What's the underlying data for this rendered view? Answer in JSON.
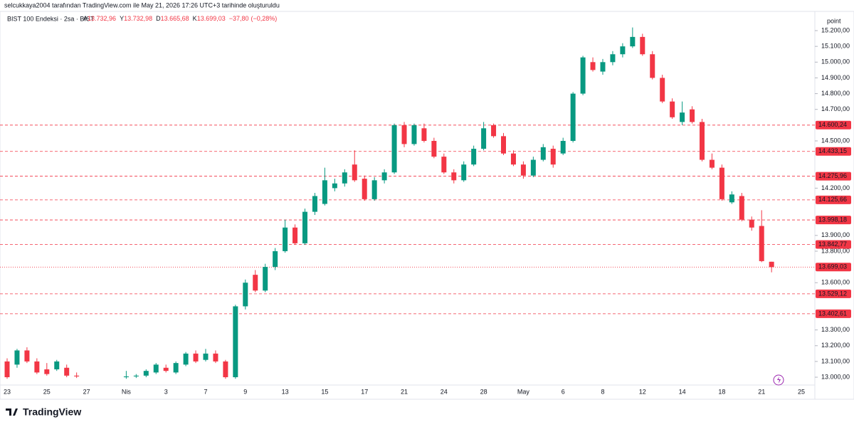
{
  "chart_data": {
    "type": "candlestick",
    "attribution": "selcukkaya2004 tarafından TradingView.com ile May 21, 2026 17:26 UTC+3 tarihinde oluşturuldu",
    "title": "BIST 100 Endeksi · 2sa · BIST",
    "ohlc": [
      {
        "prefix": "A",
        "value": 13732.96,
        "label": "13.732,96"
      },
      {
        "prefix": "Y",
        "value": 13732.98,
        "label": "13.732,98"
      },
      {
        "prefix": "D",
        "value": 13665.68,
        "label": "13.665,68"
      },
      {
        "prefix": "K",
        "value": 13699.03,
        "label": "13.699,03"
      }
    ],
    "change": {
      "value": -37.8,
      "label": "−37,80"
    },
    "change_pct": {
      "value": -0.28,
      "label": "(−0,28%)"
    },
    "unit": "point",
    "brand": "TradingView",
    "up_color": "#089981",
    "down_color": "#f23645",
    "level_color": "#f23645",
    "grid": false,
    "categories": [
      "23",
      null,
      null,
      null,
      "25",
      null,
      null,
      null,
      "27",
      null,
      null,
      null,
      "Nis",
      null,
      null,
      null,
      "3",
      null,
      null,
      null,
      "7",
      null,
      null,
      null,
      "9",
      null,
      null,
      null,
      "13",
      null,
      null,
      null,
      "15",
      null,
      null,
      null,
      "17",
      null,
      null,
      null,
      "21",
      null,
      null,
      null,
      "24",
      null,
      null,
      null,
      "28",
      null,
      null,
      null,
      "May",
      null,
      null,
      null,
      "6",
      null,
      null,
      null,
      "8",
      null,
      null,
      null,
      "12",
      null,
      null,
      null,
      "14",
      null,
      null,
      null,
      "18",
      null,
      null,
      null,
      "21",
      null,
      null,
      null,
      "25"
    ],
    "open": [
      13100,
      13080,
      13170,
      13100,
      13050,
      13050,
      13060,
      13010,
      null,
      null,
      null,
      null,
      13000,
      13005,
      13010,
      13030,
      13060,
      13030,
      13080,
      13150,
      13110,
      13150,
      13100,
      13000,
      13450,
      13650,
      13550,
      13700,
      13800,
      13950,
      13850,
      14050,
      14100,
      14200,
      14230,
      14350,
      14260,
      14130,
      14250,
      14300,
      14600,
      14480,
      14580,
      14500,
      14400,
      14300,
      14250,
      14350,
      14450,
      14600,
      14530,
      14420,
      14350,
      14280,
      14380,
      14450,
      14420,
      14500,
      14800,
      15000,
      14940,
      15000,
      15050,
      15100,
      15160,
      15050,
      14900,
      14750,
      14620,
      14700,
      14620,
      14380,
      14330,
      14110,
      14150,
      14000,
      13960,
      13732.96,
      null,
      null,
      null
    ],
    "high": [
      13120,
      13180,
      13190,
      13120,
      13090,
      13110,
      13080,
      13030,
      null,
      null,
      null,
      null,
      13040,
      13020,
      13050,
      13090,
      13080,
      13100,
      13160,
      13170,
      13180,
      13170,
      13110,
      13460,
      13620,
      13680,
      13720,
      13820,
      14000,
      13970,
      14070,
      14170,
      14330,
      14260,
      14320,
      14440,
      14280,
      14270,
      14320,
      14610,
      14620,
      14610,
      14610,
      14520,
      14420,
      14320,
      14370,
      14470,
      14620,
      14610,
      14550,
      14440,
      14370,
      14400,
      14480,
      14470,
      14520,
      14810,
      15040,
      15030,
      15020,
      15070,
      15120,
      15220,
      15180,
      15070,
      14920,
      14770,
      14750,
      14720,
      14640,
      14420,
      14350,
      14180,
      14170,
      14020,
      14060,
      13732.98,
      null,
      null,
      null
    ],
    "low": [
      12990,
      13060,
      13090,
      13020,
      13010,
      13040,
      13000,
      12995,
      null,
      null,
      null,
      null,
      12990,
      12995,
      13000,
      13020,
      13030,
      13020,
      13070,
      13090,
      13100,
      13090,
      12990,
      12990,
      13430,
      13540,
      13540,
      13680,
      13790,
      13840,
      13840,
      14030,
      14090,
      14180,
      14210,
      14240,
      14120,
      14120,
      14230,
      14290,
      14460,
      14470,
      14490,
      14390,
      14290,
      14230,
      14240,
      14340,
      14440,
      14520,
      14410,
      14340,
      14260,
      14270,
      14370,
      14330,
      14410,
      14490,
      14790,
      14940,
      14920,
      14980,
      15030,
      15090,
      15040,
      14890,
      14740,
      14640,
      14600,
      14610,
      14370,
      14320,
      14120,
      14100,
      13990,
      13930,
      13730,
      13665.68,
      null,
      null,
      null
    ],
    "close": [
      13000,
      13170,
      13100,
      13030,
      13020,
      13100,
      13010,
      13005,
      null,
      null,
      null,
      null,
      13005,
      13010,
      13040,
      13080,
      13040,
      13090,
      13150,
      13100,
      13150,
      13100,
      13000,
      13450,
      13600,
      13550,
      13700,
      13800,
      13950,
      13850,
      14050,
      14150,
      14250,
      14230,
      14300,
      14250,
      14130,
      14250,
      14300,
      14600,
      14480,
      14600,
      14500,
      14400,
      14300,
      14250,
      14350,
      14450,
      14580,
      14530,
      14420,
      14350,
      14280,
      14380,
      14460,
      14350,
      14500,
      14800,
      15030,
      14950,
      15000,
      15050,
      15100,
      15160,
      15050,
      14900,
      14750,
      14650,
      14680,
      14620,
      14380,
      14330,
      14130,
      14160,
      14000,
      13950,
      13736.83,
      13699.03,
      null,
      null,
      null
    ],
    "ylim": [
      12955,
      15304
    ],
    "yticks": [
      {
        "value": 15200,
        "label": "15.200,00"
      },
      {
        "value": 15100,
        "label": "15.100,00"
      },
      {
        "value": 15000,
        "label": "15.000,00"
      },
      {
        "value": 14900,
        "label": "14.900,00"
      },
      {
        "value": 14800,
        "label": "14.800,00"
      },
      {
        "value": 14700,
        "label": "14.700,00"
      },
      {
        "value": 14500,
        "label": "14.500,00"
      },
      {
        "value": 14200,
        "label": "14.200,00"
      },
      {
        "value": 13900,
        "label": "13.900,00"
      },
      {
        "value": 13800,
        "label": "13.800,00"
      },
      {
        "value": 13600,
        "label": "13.600,00"
      },
      {
        "value": 13300,
        "label": "13.300,00"
      },
      {
        "value": 13200,
        "label": "13.200,00"
      },
      {
        "value": 13100,
        "label": "13.100,00"
      },
      {
        "value": 13000,
        "label": "13.000,00"
      }
    ],
    "levels": [
      {
        "value": 14600.24,
        "label": "14.600,24"
      },
      {
        "value": 14433.15,
        "label": "14.433,15"
      },
      {
        "value": 14275.96,
        "label": "14.275,96"
      },
      {
        "value": 14125.66,
        "label": "14.125,66"
      },
      {
        "value": 13998.18,
        "label": "13.998,18"
      },
      {
        "value": 13842.77,
        "label": "13.842,77"
      },
      {
        "value": 13529.12,
        "label": "13.529,12"
      },
      {
        "value": 13402.61,
        "label": "13.402,61"
      }
    ],
    "last_price": {
      "value": 13699.03,
      "label": "13.699,03"
    }
  }
}
